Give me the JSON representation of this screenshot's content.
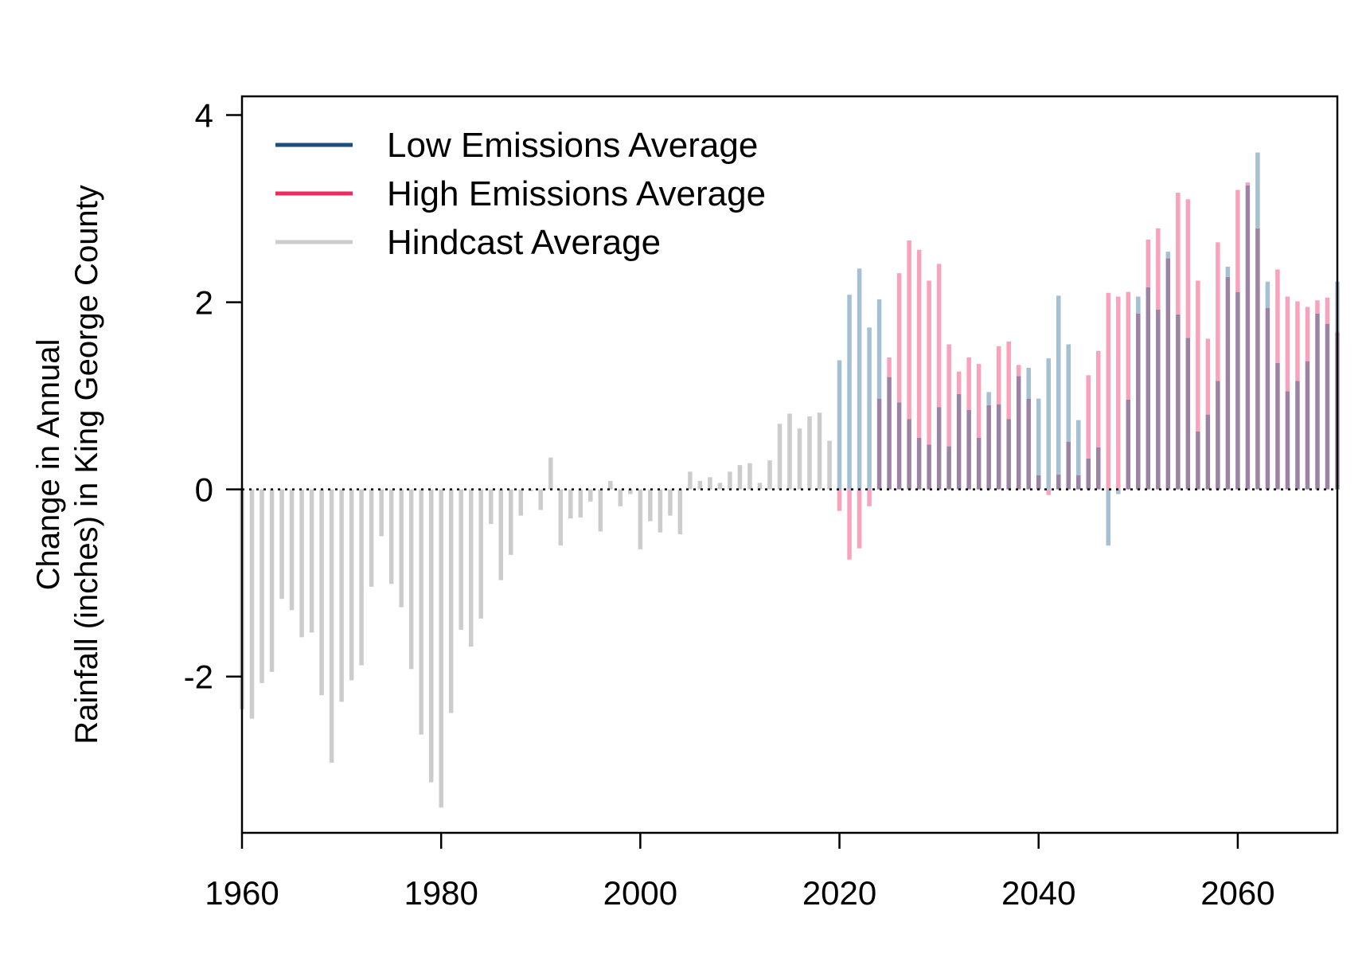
{
  "chart_data": {
    "type": "bar",
    "xlabel": "",
    "ylabel_lines": [
      "Change in Annual",
      "Rainfall (inches) in King George County"
    ],
    "xlim": [
      1960,
      2070
    ],
    "ylim": [
      -3.67,
      4.2
    ],
    "x_ticks": [
      1960,
      1980,
      2000,
      2020,
      2040,
      2060
    ],
    "y_ticks": [
      -2,
      0,
      2,
      4
    ],
    "y_tick_labels": [
      "-2",
      "0",
      "2",
      "4"
    ],
    "reference_line": 0,
    "legend_position": "top-left",
    "colors": {
      "low": "#1b4f7f",
      "high": "#ee2a63",
      "hindcast": "#cccccc",
      "low_bar": "#a5bfd3",
      "high_bar": "#f8a3bb",
      "overlap_bar": "#9c83a3"
    },
    "series": [
      {
        "name": "Low Emissions Average",
        "key": "low",
        "x_start": 2020,
        "values": [
          1.38,
          2.08,
          2.36,
          1.73,
          2.03,
          1.2,
          0.93,
          0.75,
          0.55,
          0.48,
          0.88,
          0.46,
          1.02,
          0.85,
          0.55,
          1.04,
          0.91,
          0.75,
          1.21,
          1.3,
          0.97,
          1.4,
          2.07,
          1.55,
          0.74,
          0.33,
          0.45,
          -0.6,
          -0.05,
          0.96,
          2.06,
          2.16,
          1.92,
          2.54,
          1.87,
          1.62,
          0.62,
          0.8,
          1.16,
          2.38,
          2.11,
          3.25,
          3.6,
          2.22,
          1.35,
          1.05,
          1.16,
          1.37,
          1.88,
          1.77,
          2.22
        ]
      },
      {
        "name": "High Emissions Average",
        "key": "high",
        "x_start": 2020,
        "values": [
          -0.23,
          -0.75,
          -0.63,
          -0.18,
          0.97,
          1.41,
          2.31,
          2.66,
          2.56,
          2.23,
          2.41,
          1.55,
          1.26,
          1.41,
          1.34,
          0.9,
          1.53,
          1.58,
          1.33,
          0.97,
          0.15,
          -0.06,
          0.16,
          0.51,
          0.15,
          1.22,
          1.48,
          2.1,
          2.06,
          2.11,
          1.88,
          2.67,
          2.79,
          2.47,
          3.17,
          3.1,
          2.23,
          1.61,
          2.64,
          2.27,
          3.2,
          3.28,
          2.79,
          1.94,
          2.35,
          2.06,
          2.01,
          1.95,
          2.02,
          2.05,
          1.68
        ]
      },
      {
        "name": "Hindcast Average",
        "key": "hindcast",
        "x_start": 1960,
        "values": [
          -2.35,
          -2.45,
          -2.07,
          -1.95,
          -1.17,
          -1.29,
          -1.58,
          -1.53,
          -2.2,
          -2.92,
          -2.27,
          -2.04,
          -1.88,
          -1.04,
          -0.5,
          -1.01,
          -1.26,
          -1.92,
          -2.62,
          -3.13,
          -3.4,
          -2.39,
          -1.5,
          -1.68,
          -1.38,
          -0.37,
          -0.97,
          -0.7,
          -0.28,
          -0.02,
          -0.22,
          0.34,
          -0.6,
          -0.31,
          -0.3,
          -0.13,
          -0.45,
          0.09,
          -0.18,
          -0.05,
          -0.64,
          -0.34,
          -0.46,
          -0.28,
          -0.48,
          0.19,
          0.09,
          0.13,
          0.07,
          0.19,
          0.26,
          0.28,
          0.07,
          0.31,
          0.7,
          0.81,
          0.65,
          0.78,
          0.82,
          0.52
        ]
      }
    ]
  }
}
